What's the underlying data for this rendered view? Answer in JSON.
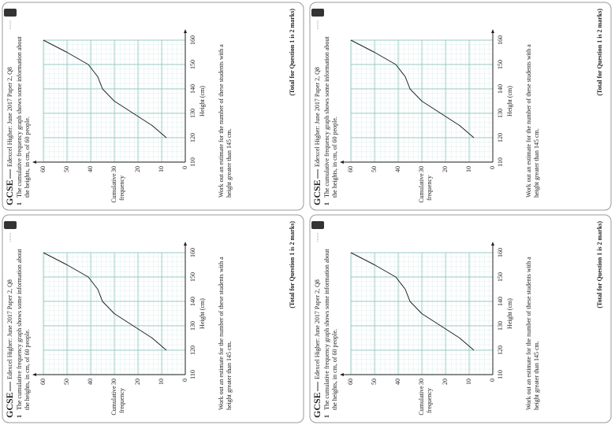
{
  "chart_data": [
    {
      "type": "line",
      "header": "GCSE",
      "source": "Edexcel Higher: June 2017 Paper 2, Q8",
      "number": "1",
      "question": [
        "The cumulative frequency graph shows some information about",
        "the heights, in cm, of 60 people."
      ],
      "ylabel": [
        "Cumulative",
        "frequency"
      ],
      "xlabel": "Height (cm)",
      "instruction": [
        "Work out an estimate for the number of these students with a",
        "height greater than 145 cm."
      ],
      "total": "(Total for Question 1 is 2 marks)",
      "x": [
        120,
        125,
        130,
        135,
        140,
        145,
        150,
        155,
        160
      ],
      "values": [
        8,
        14,
        22,
        30,
        35,
        37,
        41,
        50,
        60
      ],
      "color": "#222",
      "xlim": [
        110,
        160
      ],
      "xticks": [
        110,
        120,
        130,
        140,
        150,
        160
      ],
      "ylim": [
        0,
        60
      ],
      "yticks": [
        0,
        10,
        20,
        30,
        40,
        50,
        60
      ],
      "grid": true
    },
    {
      "type": "line",
      "header": "GCSE",
      "source": "Edexcel Higher: June 2017 Paper 2, Q8",
      "number": "1",
      "question": [
        "The cumulative frequency graph shows some information about",
        "the heights, in cm, of 60 people."
      ],
      "ylabel": [
        "Cumulative",
        "frequency"
      ],
      "xlabel": "Height (cm)",
      "instruction": [
        "Work out an estimate for the number of these students with a",
        "height greater than 145 cm."
      ],
      "total": "(Total for Question 1 is 2 marks)",
      "x": [
        120,
        125,
        130,
        135,
        140,
        145,
        150,
        155,
        160
      ],
      "values": [
        8,
        14,
        22,
        30,
        35,
        37,
        41,
        50,
        60
      ],
      "color": "#222",
      "xlim": [
        110,
        160
      ],
      "xticks": [
        110,
        120,
        130,
        140,
        150,
        160
      ],
      "ylim": [
        0,
        60
      ],
      "yticks": [
        0,
        10,
        20,
        30,
        40,
        50,
        60
      ],
      "grid": true
    },
    {
      "type": "line",
      "header": "GCSE",
      "source": "Edexcel Higher: June 2017 Paper 2, Q8",
      "number": "1",
      "question": [
        "The cumulative frequency graph shows some information about",
        "the heights, in cm, of 60 people."
      ],
      "ylabel": [
        "Cumulative",
        "frequency"
      ],
      "xlabel": "Height (cm)",
      "instruction": [
        "Work out an estimate for the number of these students with a",
        "height greater than 145 cm."
      ],
      "total": "(Total for Question 1 is 2 marks)",
      "x": [
        120,
        125,
        130,
        135,
        140,
        145,
        150,
        155,
        160
      ],
      "values": [
        8,
        14,
        22,
        30,
        35,
        37,
        41,
        50,
        60
      ],
      "color": "#222",
      "xlim": [
        110,
        160
      ],
      "xticks": [
        110,
        120,
        130,
        140,
        150,
        160
      ],
      "ylim": [
        0,
        60
      ],
      "yticks": [
        0,
        10,
        20,
        30,
        40,
        50,
        60
      ],
      "grid": true
    },
    {
      "type": "line",
      "header": "GCSE",
      "source": "Edexcel Higher: June 2017 Paper 2, Q8",
      "number": "1",
      "question": [
        "The cumulative frequency graph shows some information about",
        "the heights, in cm, of 60 people."
      ],
      "ylabel": [
        "Cumulative",
        "frequency"
      ],
      "xlabel": "Height (cm)",
      "instruction": [
        "Work out an estimate for the number of these students with a",
        "height greater than 145 cm."
      ],
      "total": "(Total for Question 1 is 2 marks)",
      "x": [
        120,
        125,
        130,
        135,
        140,
        145,
        150,
        155,
        160
      ],
      "values": [
        8,
        14,
        22,
        30,
        35,
        37,
        41,
        50,
        60
      ],
      "color": "#222",
      "xlim": [
        110,
        160
      ],
      "xticks": [
        110,
        120,
        130,
        140,
        150,
        160
      ],
      "ylim": [
        0,
        60
      ],
      "yticks": [
        0,
        10,
        20,
        30,
        40,
        50,
        60
      ],
      "grid": true
    }
  ]
}
